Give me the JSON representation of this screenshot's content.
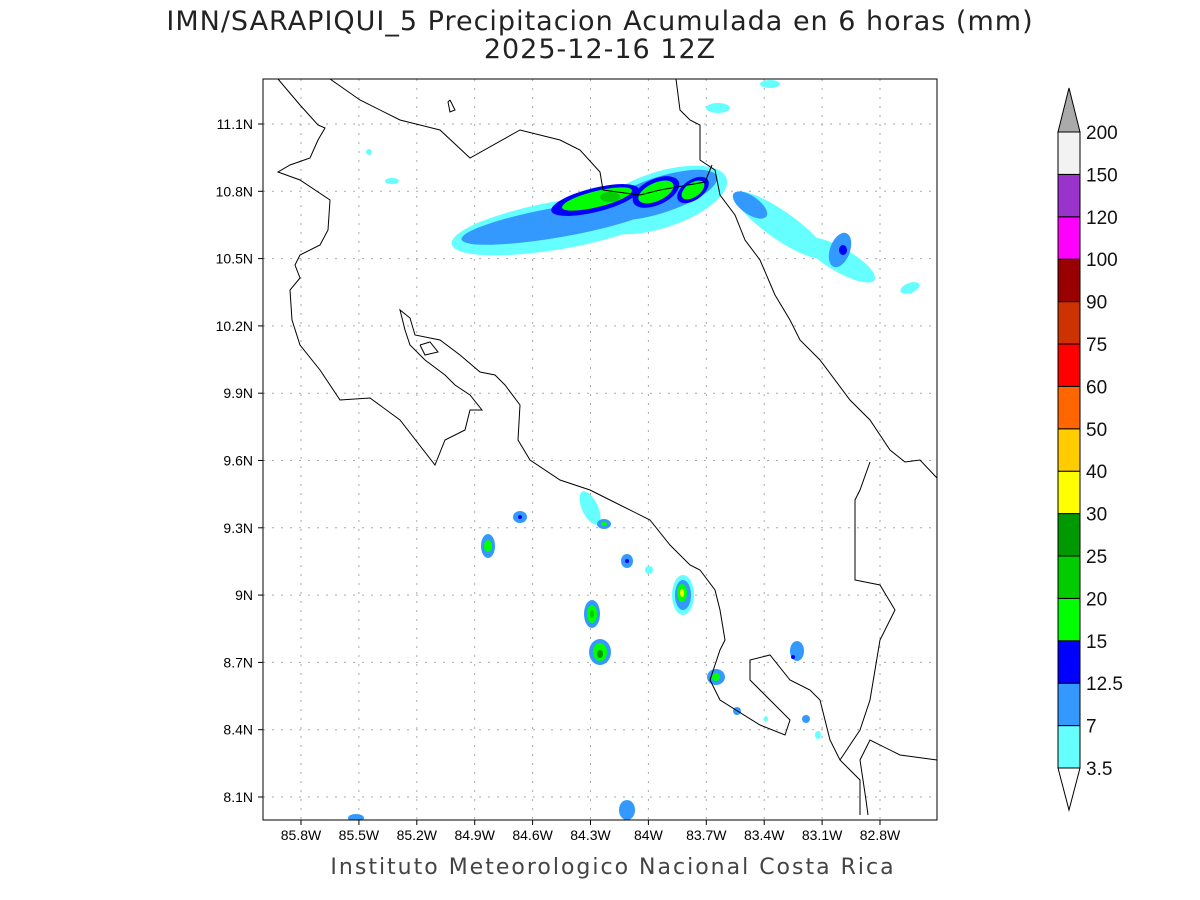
{
  "title": "IMN/SARAPIQUI_5 Precipitacion Acumulada en 6 horas (mm)",
  "subtitle": "2025-12-16 12Z",
  "footer": "Instituto Meteorologico Nacional Costa Rica",
  "map": {
    "lon_ticks": [
      "85.8W",
      "85.5W",
      "85.2W",
      "84.9W",
      "84.6W",
      "84.3W",
      "84W",
      "83.7W",
      "83.4W",
      "83.1W",
      "82.8W"
    ],
    "lat_ticks": [
      "11.1N",
      "10.8N",
      "10.5N",
      "10.2N",
      "9.9N",
      "9.6N",
      "9.3N",
      "9N",
      "8.7N",
      "8.4N",
      "8.1N"
    ],
    "grid": true
  },
  "colorbar": {
    "levels": [
      "3.5",
      "7",
      "12.5",
      "15",
      "20",
      "25",
      "30",
      "40",
      "50",
      "60",
      "75",
      "90",
      "100",
      "120",
      "150",
      "200"
    ],
    "colors": [
      "#66ffff",
      "#3399ff",
      "#0000ff",
      "#00ff00",
      "#00cc00",
      "#009900",
      "#ffff00",
      "#ffcc00",
      "#ff6600",
      "#ff0000",
      "#cc3300",
      "#990000",
      "#ff00ff",
      "#9933cc",
      "#f2f2f2"
    ],
    "over_color": "#aaaaaa",
    "under_color": "#ffffff"
  }
}
